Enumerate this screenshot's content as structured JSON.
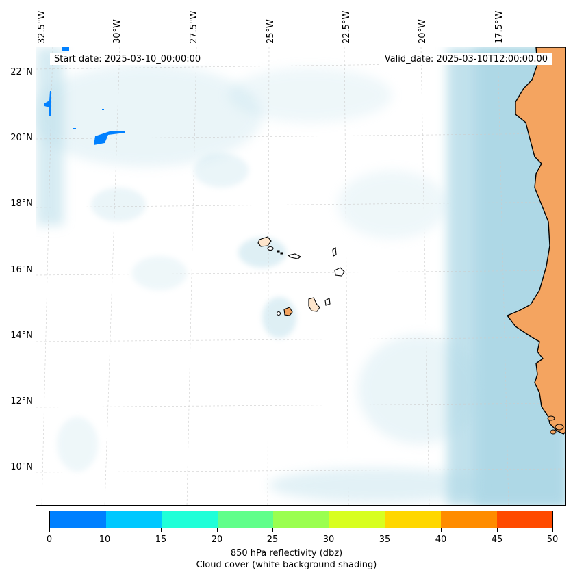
{
  "map": {
    "start_date": "Start date: 2025-03-10_00:00:00",
    "valid_date": "Valid_date: 2025-03-10T12:00:00.00",
    "lon_labels": [
      "32.5°W",
      "30°W",
      "27.5°W",
      "25°W",
      "22.5°W",
      "20°W",
      "17.5°W"
    ],
    "lat_labels": [
      "22°N",
      "20°N",
      "18°N",
      "16°N",
      "14°N",
      "12°N",
      "10°N"
    ],
    "colors": {
      "land": "#f4a460",
      "cloud": "#add8e6",
      "coast": "#000000"
    }
  },
  "colorbar": {
    "ticks": [
      "0",
      "10",
      "15",
      "20",
      "25",
      "30",
      "35",
      "40",
      "45",
      "50"
    ],
    "colors": [
      "#0080ff",
      "#00c8ff",
      "#20ffd8",
      "#60ff8a",
      "#9aff50",
      "#d8ff20",
      "#ffd700",
      "#ff8c00",
      "#ff4a00"
    ],
    "label": "850 hPa reflectivity (dbz)",
    "sublabel": "Cloud cover (white background shading)"
  }
}
